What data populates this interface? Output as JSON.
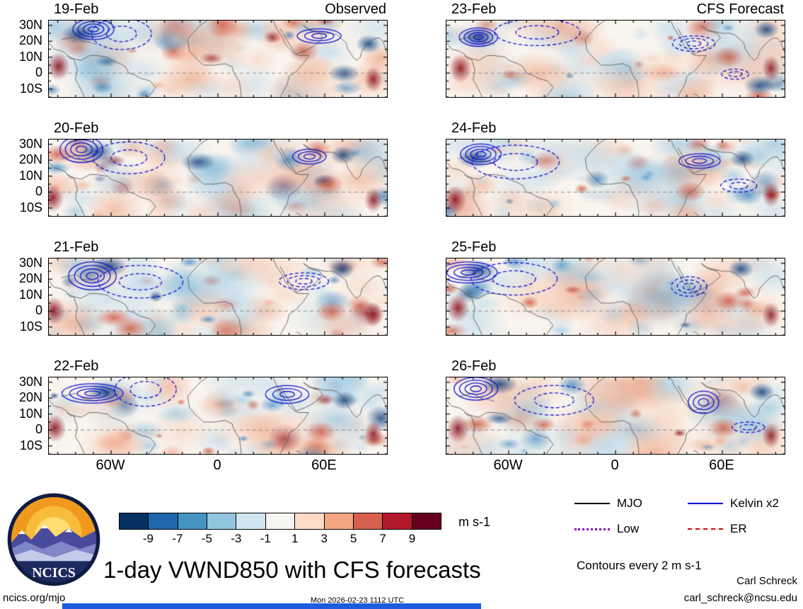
{
  "chart_data": {
    "type": "heatmap",
    "title": "1-day VWND850 with CFS forecasts",
    "columns": [
      "Observed",
      "CFS Forecast"
    ],
    "panels": [
      {
        "date": "19-Feb",
        "column": "Observed"
      },
      {
        "date": "20-Feb",
        "column": "Observed"
      },
      {
        "date": "21-Feb",
        "column": "Observed"
      },
      {
        "date": "22-Feb",
        "column": "Observed"
      },
      {
        "date": "23-Feb",
        "column": "CFS Forecast"
      },
      {
        "date": "24-Feb",
        "column": "CFS Forecast"
      },
      {
        "date": "25-Feb",
        "column": "CFS Forecast"
      },
      {
        "date": "26-Feb",
        "column": "CFS Forecast"
      }
    ],
    "y_axis": {
      "ticks": [
        "30N",
        "20N",
        "10N",
        "0",
        "10S"
      ],
      "tick_values_deg": [
        30,
        20,
        10,
        0,
        -10
      ],
      "range_deg": [
        -15,
        33
      ]
    },
    "x_axis": {
      "ticks": [
        "60W",
        "0",
        "60E"
      ],
      "tick_values_deg": [
        -60,
        0,
        60
      ],
      "range_deg": [
        -95,
        95
      ]
    },
    "colorbar": {
      "unit": "m s-1",
      "tick_labels": [
        "-9",
        "-7",
        "-5",
        "-3",
        "-1",
        "1",
        "3",
        "5",
        "7",
        "9"
      ],
      "colors": [
        "#053061",
        "#2166ac",
        "#4393c3",
        "#92c5de",
        "#d1e5f0",
        "#f7f5f2",
        "#fddbc7",
        "#f4a582",
        "#d6604d",
        "#b2182b",
        "#67001f"
      ]
    },
    "legend": [
      {
        "name": "MJO",
        "color": "#000000",
        "style": "solid"
      },
      {
        "name": "Kelvin x2",
        "color": "#0000dd",
        "style": "solid"
      },
      {
        "name": "Low",
        "color": "#8800bb",
        "style": "dotted"
      },
      {
        "name": "ER",
        "color": "#dd0000",
        "style": "dashed"
      }
    ],
    "contour_note": "Contours every 2 m s-1"
  },
  "logo": {
    "text": "NCICS"
  },
  "footer": {
    "site": "ncics.org/mjo",
    "timestamp": "Mon 2026-02-23 1112 UTC",
    "author": "Carl Schreck",
    "email": "carl_schreck@ncsu.edu"
  }
}
